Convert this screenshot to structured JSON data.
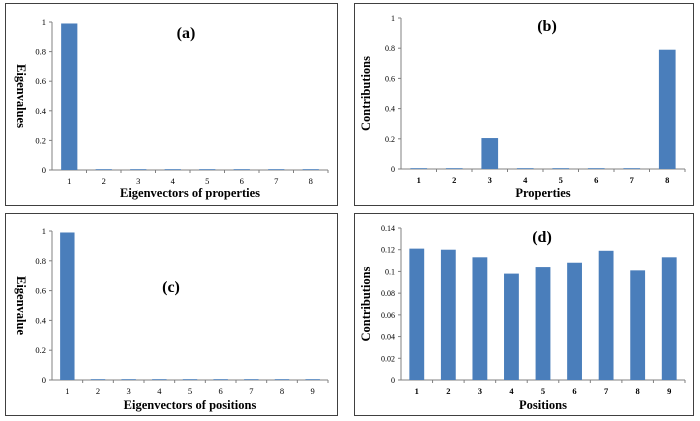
{
  "chart_data": [
    {
      "id": "a",
      "type": "bar",
      "panel_label": "(a)",
      "categories": [
        "1",
        "2",
        "3",
        "4",
        "5",
        "6",
        "7",
        "8"
      ],
      "values": [
        0.99,
        0.002,
        0.002,
        0.002,
        0.002,
        0.002,
        0.002,
        0.002
      ],
      "xlabel": "Eigenvectors of properties",
      "ylabel": "Eigenvalues",
      "ylim": [
        0,
        1
      ],
      "yticks": [
        "0",
        "0.2",
        "0.4",
        "0.6",
        "0.8",
        "1"
      ],
      "grid": false,
      "bar_color": "#4a7ebb"
    },
    {
      "id": "b",
      "type": "bar",
      "panel_label": "(b)",
      "categories": [
        "1",
        "2",
        "3",
        "4",
        "5",
        "6",
        "7",
        "8"
      ],
      "values": [
        0.002,
        0.001,
        0.205,
        0.002,
        0.002,
        0.002,
        0.002,
        0.79
      ],
      "xlabel": "Properties",
      "ylabel": "Contributions",
      "ylim": [
        0,
        1
      ],
      "yticks": [
        "0",
        "0.2",
        "0.4",
        "0.6",
        "0.8",
        "1"
      ],
      "grid": false,
      "bar_color": "#4a7ebb"
    },
    {
      "id": "c",
      "type": "bar",
      "panel_label": "(c)",
      "categories": [
        "1",
        "2",
        "3",
        "4",
        "5",
        "6",
        "7",
        "8",
        "9"
      ],
      "values": [
        0.99,
        0.002,
        0.002,
        0.002,
        0.002,
        0.002,
        0.002,
        0.002,
        0.002
      ],
      "xlabel": "Eigenvectors  of positions",
      "ylabel": "Eigenvalue",
      "ylim": [
        0,
        1
      ],
      "yticks": [
        "0",
        "0.2",
        "0.4",
        "0.6",
        "0.8",
        "1"
      ],
      "grid": false,
      "bar_color": "#4a7ebb"
    },
    {
      "id": "d",
      "type": "bar",
      "panel_label": "(d)",
      "categories": [
        "1",
        "2",
        "3",
        "4",
        "5",
        "6",
        "7",
        "8",
        "9"
      ],
      "values": [
        0.121,
        0.12,
        0.113,
        0.098,
        0.104,
        0.108,
        0.119,
        0.101,
        0.113
      ],
      "xlabel": "Positions",
      "ylabel": "Contributions",
      "ylim": [
        0,
        0.14
      ],
      "yticks": [
        "0",
        "0.02",
        "0.04",
        "0.06",
        "0.08",
        "0.1",
        "0.12",
        "0.14"
      ],
      "grid": false,
      "bar_color": "#4a7ebb"
    }
  ]
}
